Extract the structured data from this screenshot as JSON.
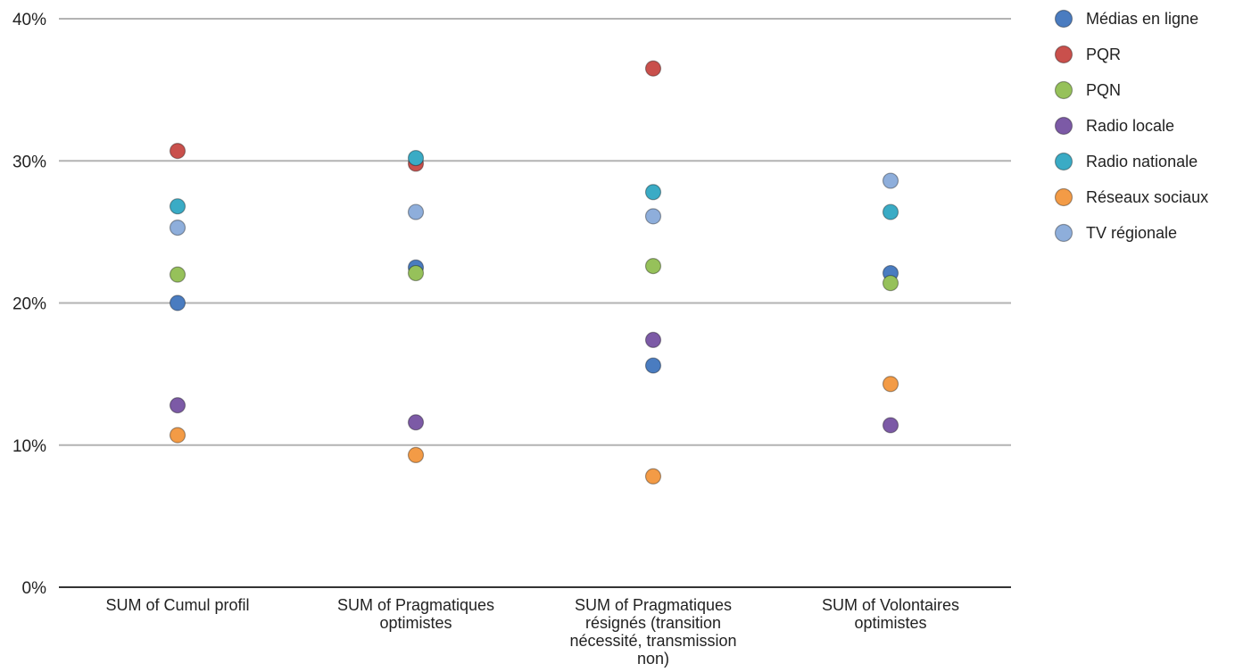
{
  "chart_data": {
    "type": "scatter",
    "title": "",
    "xlabel": "",
    "ylabel": "",
    "ylim": [
      0,
      40
    ],
    "y_ticks": [
      "0%",
      "10%",
      "20%",
      "30%",
      "40%"
    ],
    "y_tick_values": [
      0,
      10,
      20,
      30,
      40
    ],
    "grid": true,
    "legend_position": "right",
    "categories": [
      [
        "SUM of Cumul profil"
      ],
      [
        "SUM of Pragmatiques",
        "optimistes"
      ],
      [
        "SUM of Pragmatiques",
        "résignés (transition",
        "nécessité, transmission",
        "non)"
      ],
      [
        "SUM of Volontaires",
        "optimistes"
      ]
    ],
    "series": [
      {
        "name": "Médias en ligne",
        "color": "#4a7cc0",
        "values": [
          20.0,
          22.5,
          15.6,
          22.1
        ]
      },
      {
        "name": "PQR",
        "color": "#c9504c",
        "values": [
          30.7,
          29.8,
          36.5,
          null
        ]
      },
      {
        "name": "PQN",
        "color": "#96c15a",
        "values": [
          22.0,
          22.1,
          22.6,
          21.4
        ]
      },
      {
        "name": "Radio locale",
        "color": "#7c5aa6",
        "values": [
          12.8,
          11.6,
          17.4,
          11.4
        ]
      },
      {
        "name": "Radio nationale",
        "color": "#3aabc5",
        "values": [
          26.8,
          30.2,
          27.8,
          26.4
        ]
      },
      {
        "name": "Réseaux sociaux",
        "color": "#f39b46",
        "values": [
          10.7,
          9.3,
          7.8,
          14.3
        ]
      },
      {
        "name": "TV régionale",
        "color": "#8eaedb",
        "values": [
          25.3,
          26.4,
          26.1,
          28.6
        ]
      }
    ]
  }
}
